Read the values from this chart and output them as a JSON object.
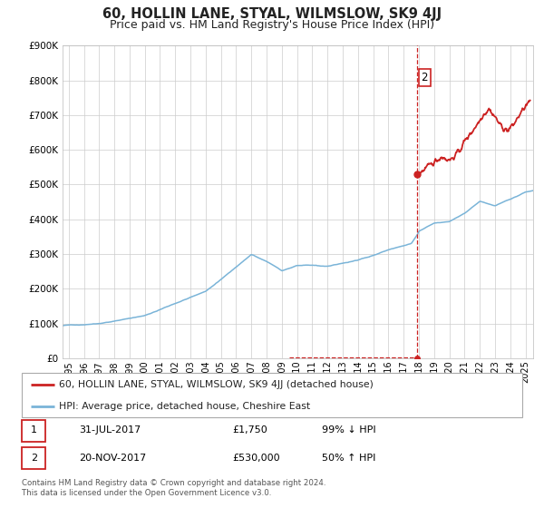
{
  "title": "60, HOLLIN LANE, STYAL, WILMSLOW, SK9 4JJ",
  "subtitle": "Price paid vs. HM Land Registry's House Price Index (HPI)",
  "ylim": [
    0,
    900000
  ],
  "yticks": [
    0,
    100000,
    200000,
    300000,
    400000,
    500000,
    600000,
    700000,
    800000,
    900000
  ],
  "ytick_labels": [
    "£0",
    "£100K",
    "£200K",
    "£300K",
    "£400K",
    "£500K",
    "£600K",
    "£700K",
    "£800K",
    "£900K"
  ],
  "xlim_start": 1994.6,
  "xlim_end": 2025.5,
  "hpi_color": "#7ab4d8",
  "price_color": "#cc2222",
  "marker2_date": 2017.9,
  "marker2_price": 530000,
  "vline_color": "#cc2222",
  "dot_color": "#cc2222",
  "legend_label1": "60, HOLLIN LANE, STYAL, WILMSLOW, SK9 4JJ (detached house)",
  "legend_label2": "HPI: Average price, detached house, Cheshire East",
  "table_row1": [
    "1",
    "31-JUL-2017",
    "£1,750",
    "99% ↓ HPI"
  ],
  "table_row2": [
    "2",
    "20-NOV-2017",
    "£530,000",
    "50% ↑ HPI"
  ],
  "footnote1": "Contains HM Land Registry data © Crown copyright and database right 2024.",
  "footnote2": "This data is licensed under the Open Government Licence v3.0.",
  "background_color": "#ffffff",
  "grid_color": "#cccccc",
  "title_fontsize": 10.5,
  "subtitle_fontsize": 9
}
